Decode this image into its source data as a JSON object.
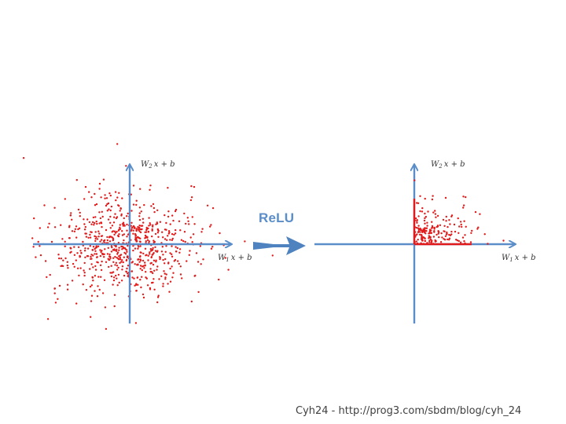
{
  "colors": {
    "axis": "#5b8ec9",
    "points": "#e11b1b",
    "arrow": "#4f83bf",
    "label": "#5b8ec9"
  },
  "left_plot": {
    "y_axis_label": {
      "base": "W",
      "sub": "2",
      "rest": "x + b"
    },
    "x_axis_label": {
      "base": "W",
      "sub": "1",
      "rest": "x + b"
    }
  },
  "right_plot": {
    "y_axis_label": {
      "base": "W",
      "sub": "2",
      "rest": "x + b"
    },
    "x_axis_label": {
      "base": "W",
      "sub": "1",
      "rest": "x + b"
    }
  },
  "transform": {
    "label": "ReLU",
    "icon": "right-arrow-icon"
  },
  "footer": {
    "text": "Cyh24 - http://prog3.com/sbdm/blog/cyh_24"
  }
}
